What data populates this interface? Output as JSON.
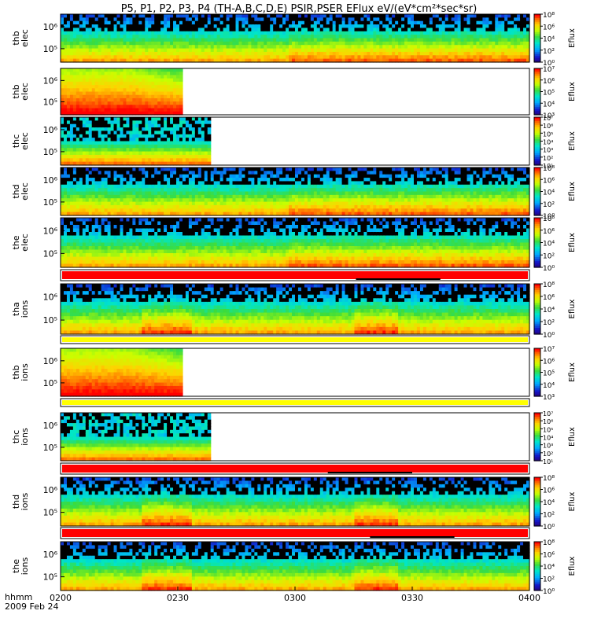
{
  "chart_data": {
    "type": "heatmap",
    "title": "P5, P1, P2, P3, P4 (TH-A,B,C,D,E) PSIR,PSER EFlux eV/(eV*cm²*sec*sr)",
    "x_axis": {
      "ticks": [
        "0200",
        "0230",
        "0300",
        "0330",
        "0400"
      ],
      "label": "hhmm",
      "date": "2009 Feb 24",
      "range": [
        "02:00",
        "04:00"
      ]
    },
    "colorbar_label": "Eflux",
    "panels": [
      {
        "label": "thb elec",
        "y_ticks": [
          "10⁵",
          "10⁶"
        ],
        "cbar": [
          0,
          8
        ],
        "extent": 1.0,
        "colorbar_ticks": [
          "10⁰",
          "10²",
          "10⁴",
          "10⁶",
          "10⁸"
        ]
      },
      {
        "label": "thb elec",
        "y_ticks": [
          "10⁵",
          "10⁶"
        ],
        "cbar": [
          3,
          7
        ],
        "extent": 0.26,
        "colorbar_ticks": [
          "10³",
          "10⁴",
          "10⁵",
          "10⁶",
          "10⁷"
        ]
      },
      {
        "label": "thc elec",
        "y_ticks": [
          "10⁵",
          "10⁶"
        ],
        "cbar": [
          1,
          7
        ],
        "extent": 0.32,
        "colorbar_ticks": [
          "10¹",
          "10²",
          "10³",
          "10⁴",
          "10⁵",
          "10⁶",
          "10⁷"
        ]
      },
      {
        "label": "thd elec",
        "y_ticks": [
          "10⁵",
          "10⁶"
        ],
        "cbar": [
          0,
          8
        ],
        "extent": 1.0,
        "colorbar_ticks": [
          "10⁰",
          "10²",
          "10⁴",
          "10⁶",
          "10⁸"
        ]
      },
      {
        "label": "the elec",
        "y_ticks": [
          "10⁵",
          "10⁶"
        ],
        "cbar": [
          0,
          8
        ],
        "extent": 1.0,
        "colorbar_ticks": [
          "10⁰",
          "10²",
          "10⁴",
          "10⁶",
          "10⁸"
        ]
      },
      {
        "label": "tha ions",
        "y_ticks": [
          "10⁵",
          "10⁶"
        ],
        "cbar": [
          0,
          8
        ],
        "extent": 1.0,
        "colorbar_ticks": [
          "10⁰",
          "10²",
          "10⁴",
          "10⁶",
          "10⁸"
        ]
      },
      {
        "label": "thb ions",
        "y_ticks": [
          "10⁵",
          "10⁶"
        ],
        "cbar": [
          3,
          7
        ],
        "extent": 0.26,
        "colorbar_ticks": [
          "10³",
          "10⁴",
          "10⁵",
          "10⁶",
          "10⁷"
        ]
      },
      {
        "label": "thc ions",
        "y_ticks": [
          "10⁵",
          "10⁶"
        ],
        "cbar": [
          1,
          7
        ],
        "extent": 0.32,
        "colorbar_ticks": [
          "10¹",
          "10²",
          "10³",
          "10⁴",
          "10⁵",
          "10⁶",
          "10⁷"
        ]
      },
      {
        "label": "thd ions",
        "y_ticks": [
          "10⁵",
          "10⁶"
        ],
        "cbar": [
          0,
          8
        ],
        "extent": 1.0,
        "colorbar_ticks": [
          "10⁰",
          "10²",
          "10⁴",
          "10⁶",
          "10⁸"
        ]
      },
      {
        "label": "the ions",
        "y_ticks": [
          "10⁵",
          "10⁶"
        ],
        "cbar": [
          0,
          8
        ],
        "extent": 1.0,
        "colorbar_ticks": [
          "10⁰",
          "10²",
          "10⁴",
          "10⁶",
          "10⁸"
        ]
      }
    ],
    "mode_bars": [
      {
        "after_panel": 5,
        "color": "#ff0000",
        "black_segment": [
          0.63,
          0.81
        ]
      },
      {
        "after_panel": 6,
        "color": "#ffff00"
      },
      {
        "after_panel": 7,
        "color": "#ffff00"
      },
      {
        "after_panel": 8,
        "color": "#ff0000",
        "black_segment": [
          0.57,
          0.75
        ]
      },
      {
        "after_panel": 9,
        "color": "#ff0000",
        "black_segment": [
          0.66,
          0.84
        ]
      }
    ],
    "colors": {
      "low": "#2a0a6e",
      "mid": "#33cc55",
      "high": "#ff0000",
      "fill_gap": "#000000"
    }
  }
}
